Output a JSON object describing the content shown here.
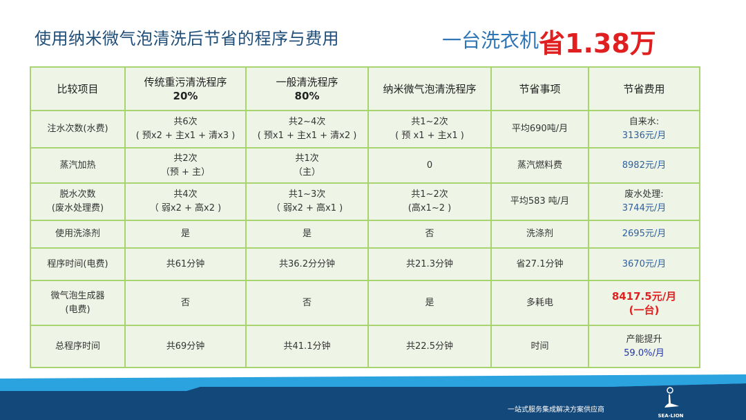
{
  "title": "使用纳米微气泡清洗后节省的程序与费用",
  "slogan": {
    "prefix": "一台洗衣机",
    "highlight": "省1.38万"
  },
  "table": {
    "headers": [
      [
        "比较项目",
        ""
      ],
      [
        "传统重污清洗程序",
        "20%"
      ],
      [
        "一般清洗程序",
        "80%"
      ],
      [
        "纳米微气泡清洗程序",
        ""
      ],
      [
        "节省事项",
        ""
      ],
      [
        "节省费用",
        ""
      ]
    ],
    "rows": [
      [
        [
          "注水次数(水费)"
        ],
        [
          "共6次",
          "( 预x2 + 主x1 + 清x3 )"
        ],
        [
          "共2~4次",
          "( 预x1 + 主x1 + 清x2 )"
        ],
        [
          "共1~2次",
          "( 预 x1 + 主x1 )"
        ],
        [
          "平均690吨/月"
        ],
        [
          "自来水:",
          "3136元/月"
        ]
      ],
      [
        [
          "蒸汽加热"
        ],
        [
          "共2次",
          "（预 + 主）"
        ],
        [
          "共1次",
          "（主）"
        ],
        [
          "0"
        ],
        [
          "蒸汽燃料费"
        ],
        [
          "",
          "8982元/月"
        ]
      ],
      [
        [
          "脱水次数",
          "(废水处理费)"
        ],
        [
          "共4次",
          "（ 弱x2 + 高x2 )"
        ],
        [
          "共1~3次",
          "（ 弱x2 + 高x1 )"
        ],
        [
          "共1~2次",
          "(高x1~2 )"
        ],
        [
          "平均583 吨/月"
        ],
        [
          "废水处理:",
          "3744元/月"
        ]
      ],
      [
        [
          "使用洗涤剂"
        ],
        [
          "是"
        ],
        [
          "是"
        ],
        [
          "否"
        ],
        [
          "洗涤剂"
        ],
        [
          "",
          "2695元/月"
        ]
      ],
      [
        [
          "程序时间(电费)"
        ],
        [
          "共61分钟"
        ],
        [
          "共36.2分分钟"
        ],
        [
          "共21.3分钟"
        ],
        [
          "省27.1分钟"
        ],
        [
          "",
          "3670元/月"
        ]
      ],
      [
        [
          "微气泡生成器",
          "(电费)"
        ],
        [
          "否"
        ],
        [
          "否"
        ],
        [
          "是"
        ],
        [
          "多耗电"
        ],
        [
          "",
          "8417.5元/月",
          "(一台)"
        ]
      ],
      [
        [
          "总程序时间"
        ],
        [
          "共69分钟"
        ],
        [
          "共41.1分钟"
        ],
        [
          "共22.5分钟"
        ],
        [
          "时间"
        ],
        [
          "产能提升",
          "59.0%/月"
        ]
      ]
    ]
  },
  "footer": {
    "tagline": "一站式服务集成解决方案供应商",
    "logo_text": "SEA-LION"
  },
  "colors": {
    "border": "#a8d46f",
    "cell_bg": "#eef4e6",
    "title": "#1f4e79",
    "highlight": "#e02020",
    "footer_dark": "#13487a",
    "footer_light": "#2aa3df"
  }
}
